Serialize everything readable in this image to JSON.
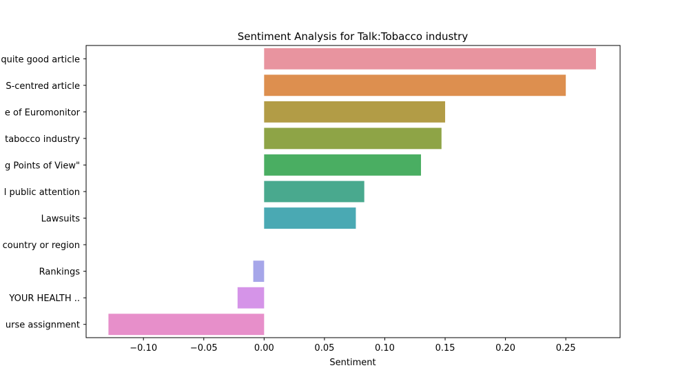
{
  "chart_data": {
    "type": "bar",
    "orientation": "horizontal",
    "title": "Sentiment Analysis for Talk:Tobacco industry",
    "xlabel": "Sentiment",
    "ylabel": "",
    "xlim": [
      -0.1475,
      0.295
    ],
    "x_ticks": [
      -0.1,
      -0.05,
      0.0,
      0.05,
      0.1,
      0.15,
      0.2,
      0.25
    ],
    "x_tick_labels": [
      "−0.10",
      "−0.05",
      "0.00",
      "0.05",
      "0.10",
      "0.15",
      "0.20",
      "0.25"
    ],
    "categories": [
      "quite good article",
      "S-centred article",
      "e of Euromonitor",
      "tabocco industry",
      "g Points of View\"",
      "l public attention",
      "Lawsuits",
      "country or region",
      "Rankings",
      " YOUR HEALTH ..",
      "urse assignment"
    ],
    "values": [
      0.275,
      0.25,
      0.15,
      0.147,
      0.13,
      0.083,
      0.076,
      0.0,
      -0.009,
      -0.022,
      -0.129
    ],
    "colors": [
      "#e8949f",
      "#dd8f4f",
      "#b29c46",
      "#8ea446",
      "#4aae62",
      "#49a98e",
      "#4aa9b3",
      "#6aa6d8",
      "#a6a6e9",
      "#d594e8",
      "#e78fca"
    ]
  }
}
